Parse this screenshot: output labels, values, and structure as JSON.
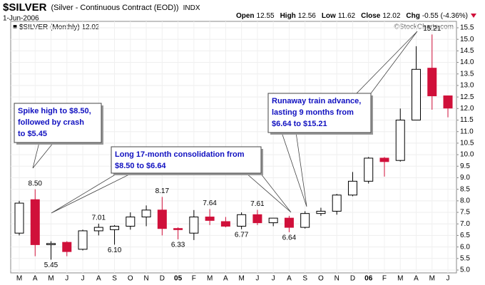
{
  "chart_data": {
    "type": "candlestick",
    "title": "$SILVER",
    "subtitle": "(Silver - Continuous Contract (EOD))",
    "exchange": "INDX",
    "date": "1-Jun-2006",
    "watermark": "©StockCharts.com",
    "legend": "$SILVER (Monthly) 12.02",
    "quote": [
      {
        "label": "Open",
        "value": 12.55
      },
      {
        "label": "High",
        "value": 12.56
      },
      {
        "label": "Low",
        "value": 11.62
      },
      {
        "label": "Close",
        "value": 12.02
      },
      {
        "label": "Chg",
        "value": -0.55,
        "pct": "(-4.36%)"
      }
    ],
    "categories": [
      "M",
      "A",
      "M",
      "J",
      "J",
      "A",
      "S",
      "O",
      "N",
      "D",
      "05",
      "F",
      "M",
      "A",
      "M",
      "J",
      "J",
      "A",
      "S",
      "O",
      "N",
      "D",
      "06",
      "F",
      "M",
      "A",
      "M",
      "J"
    ],
    "open": [
      6.6,
      8.05,
      6.1,
      6.2,
      5.9,
      6.7,
      6.75,
      6.9,
      7.3,
      7.6,
      6.8,
      6.6,
      7.3,
      7.1,
      6.9,
      7.4,
      7.05,
      7.25,
      6.85,
      7.45,
      7.55,
      8.25,
      8.85,
      9.85,
      9.75,
      11.5,
      13.75,
      12.55
    ],
    "high": [
      8.0,
      8.5,
      6.25,
      6.25,
      6.75,
      7.01,
      6.95,
      7.5,
      7.8,
      8.17,
      6.85,
      7.6,
      7.64,
      7.3,
      7.5,
      7.61,
      7.25,
      7.35,
      7.55,
      7.7,
      8.3,
      9.25,
      9.9,
      9.9,
      12.0,
      14.7,
      15.21,
      12.56
    ],
    "low": [
      6.5,
      5.6,
      5.45,
      5.6,
      5.85,
      6.5,
      6.1,
      6.75,
      6.9,
      6.5,
      6.33,
      6.3,
      6.95,
      6.85,
      6.77,
      6.95,
      6.9,
      6.64,
      6.8,
      7.35,
      7.4,
      8.2,
      8.75,
      9.05,
      9.7,
      11.5,
      11.95,
      11.62
    ],
    "close": [
      7.9,
      6.1,
      6.15,
      5.8,
      6.7,
      6.85,
      6.9,
      7.3,
      7.6,
      6.8,
      6.75,
      7.3,
      7.15,
      6.9,
      7.4,
      7.05,
      7.25,
      6.85,
      7.45,
      7.55,
      8.25,
      8.85,
      9.85,
      9.7,
      11.5,
      13.7,
      12.55,
      12.02
    ],
    "high_labels": [
      null,
      "8.50",
      null,
      null,
      null,
      "7.01",
      null,
      null,
      null,
      "8.17",
      null,
      null,
      "7.64",
      null,
      null,
      "7.61",
      null,
      null,
      null,
      null,
      null,
      null,
      null,
      null,
      null,
      null,
      "15.21",
      null
    ],
    "low_labels": [
      null,
      null,
      "5.45",
      null,
      null,
      null,
      "6.10",
      null,
      null,
      null,
      "6.33",
      null,
      null,
      null,
      "6.77",
      null,
      null,
      "6.64",
      null,
      null,
      null,
      null,
      null,
      null,
      null,
      null,
      null,
      null
    ],
    "up_color": "#ffffff",
    "down_color": "#d0103a",
    "annotation_color": "#1010c0",
    "annotations": [
      {
        "lines": [
          "Spike high to $8.50,",
          "followed by crash",
          "to $5.45"
        ]
      },
      {
        "lines": [
          "Long 17-month consolidation from",
          "$8.50 to $6.64"
        ]
      },
      {
        "lines": [
          "Runaway train advance,",
          "lasting 9 months from",
          "$6.64 to $15.21"
        ]
      }
    ],
    "ylim": [
      5.0,
      15.5
    ],
    "yticks": [
      {
        "value": 5,
        "label": "5.0"
      },
      {
        "value": 5.5,
        "label": "5.5"
      },
      {
        "value": 6,
        "label": "6.0"
      },
      {
        "value": 6.5,
        "label": "6.5"
      },
      {
        "value": 7,
        "label": "7.0"
      },
      {
        "value": 7.5,
        "label": "7.5"
      },
      {
        "value": 8,
        "label": "8.0"
      },
      {
        "value": 8.5,
        "label": "8.5"
      },
      {
        "value": 9,
        "label": "9.0"
      },
      {
        "value": 9.5,
        "label": "9.5"
      },
      {
        "value": 10,
        "label": "10.0"
      },
      {
        "value": 10.5,
        "label": "10.5"
      },
      {
        "value": 11,
        "label": "11.0"
      },
      {
        "value": 11.5,
        "label": "11.5"
      },
      {
        "value": 12,
        "label": "12.0"
      },
      {
        "value": 12.5,
        "label": "12.5"
      },
      {
        "value": 13,
        "label": "13.0"
      },
      {
        "value": 13.5,
        "label": "13.5"
      },
      {
        "value": 14,
        "label": "14.0"
      },
      {
        "value": 14.5,
        "label": "14.5"
      },
      {
        "value": 15,
        "label": "15.0"
      },
      {
        "value": 15.5,
        "label": "15.5"
      }
    ],
    "grid": true
  }
}
